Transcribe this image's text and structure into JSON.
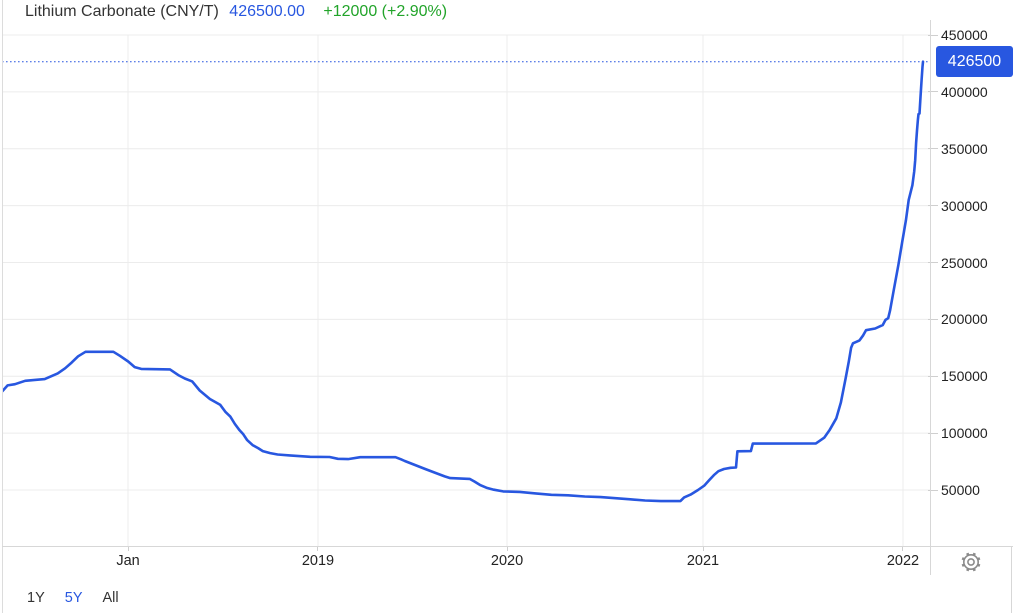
{
  "header": {
    "instrument": "Lithium Carbonate (CNY/T)",
    "price": "426500.00",
    "change": "+12000 (+2.90%)"
  },
  "marker": {
    "label": "426500",
    "value": 426500
  },
  "toolbar": {
    "ranges": [
      {
        "label": "1Y",
        "active": false
      },
      {
        "label": "5Y",
        "active": true
      },
      {
        "label": "All",
        "active": false
      }
    ]
  },
  "icons": {
    "settings": "gear-icon"
  },
  "colors": {
    "accent": "#2857e0",
    "green": "#22a42a",
    "title_text": "#333333",
    "text": "#222222",
    "grid": "#ececec",
    "axis_border": "#d7d7d7",
    "tick": "#cfcfcf",
    "gear": "#8b8b8b",
    "marker_text": "#ffffff"
  },
  "chart_data": {
    "type": "line",
    "title": "Lithium Carbonate (CNY/T)",
    "unit": "CNY/T",
    "current_value": 426500,
    "change_abs": 12000,
    "change_pct": 2.9,
    "ylim": [
      0,
      460000
    ],
    "grid": true,
    "y_ticks": [
      450000,
      400000,
      350000,
      300000,
      250000,
      200000,
      150000,
      100000,
      50000
    ],
    "x_ticks": [
      {
        "label": "Jan",
        "f": 0.1358
      },
      {
        "label": "2019",
        "f": 0.3405
      },
      {
        "label": "2020",
        "f": 0.5442
      },
      {
        "label": "2021",
        "f": 0.7554
      },
      {
        "label": "2022",
        "f": 0.9709
      }
    ],
    "x_note": "f = fraction across plot; ticks mark Jan 2018 through Jan 2022; series spans mid-2017 to Feb 2022",
    "points": [
      [
        0.0,
        136500
      ],
      [
        0.006,
        142000
      ],
      [
        0.014,
        143000
      ],
      [
        0.025,
        146000
      ],
      [
        0.046,
        147500
      ],
      [
        0.06,
        152500
      ],
      [
        0.068,
        157000
      ],
      [
        0.075,
        162000
      ],
      [
        0.082,
        167500
      ],
      [
        0.09,
        171500
      ],
      [
        0.12,
        171500
      ],
      [
        0.127,
        168000
      ],
      [
        0.136,
        163000
      ],
      [
        0.143,
        158000
      ],
      [
        0.15,
        156500
      ],
      [
        0.181,
        156000
      ],
      [
        0.19,
        151000
      ],
      [
        0.197,
        148000
      ],
      [
        0.205,
        145500
      ],
      [
        0.213,
        137500
      ],
      [
        0.224,
        130000
      ],
      [
        0.235,
        125000
      ],
      [
        0.241,
        118500
      ],
      [
        0.246,
        114500
      ],
      [
        0.251,
        108000
      ],
      [
        0.256,
        102500
      ],
      [
        0.26,
        99000
      ],
      [
        0.264,
        94000
      ],
      [
        0.27,
        89500
      ],
      [
        0.276,
        86800
      ],
      [
        0.281,
        84200
      ],
      [
        0.289,
        82400
      ],
      [
        0.297,
        81200
      ],
      [
        0.31,
        80400
      ],
      [
        0.332,
        79200
      ],
      [
        0.353,
        79000
      ],
      [
        0.362,
        77400
      ],
      [
        0.373,
        77200
      ],
      [
        0.386,
        78800
      ],
      [
        0.424,
        78800
      ],
      [
        0.43,
        77000
      ],
      [
        0.434,
        75500
      ],
      [
        0.445,
        72000
      ],
      [
        0.456,
        68500
      ],
      [
        0.467,
        65000
      ],
      [
        0.477,
        62000
      ],
      [
        0.483,
        60500
      ],
      [
        0.504,
        59800
      ],
      [
        0.509,
        57500
      ],
      [
        0.515,
        54500
      ],
      [
        0.522,
        52000
      ],
      [
        0.53,
        50300
      ],
      [
        0.54,
        48800
      ],
      [
        0.558,
        48300
      ],
      [
        0.575,
        47000
      ],
      [
        0.592,
        45800
      ],
      [
        0.61,
        45300
      ],
      [
        0.628,
        44300
      ],
      [
        0.645,
        43800
      ],
      [
        0.661,
        42800
      ],
      [
        0.677,
        41800
      ],
      [
        0.693,
        40800
      ],
      [
        0.71,
        40200
      ],
      [
        0.731,
        40200
      ],
      [
        0.735,
        43500
      ],
      [
        0.742,
        46000
      ],
      [
        0.75,
        50000
      ],
      [
        0.757,
        54000
      ],
      [
        0.762,
        58500
      ],
      [
        0.767,
        63000
      ],
      [
        0.772,
        66500
      ],
      [
        0.778,
        68500
      ],
      [
        0.785,
        69500
      ],
      [
        0.791,
        69800
      ],
      [
        0.7925,
        84000
      ],
      [
        0.807,
        84200
      ],
      [
        0.809,
        90800
      ],
      [
        0.877,
        91000
      ],
      [
        0.886,
        96000
      ],
      [
        0.892,
        103000
      ],
      [
        0.899,
        113000
      ],
      [
        0.904,
        127000
      ],
      [
        0.909,
        148000
      ],
      [
        0.9125,
        163000
      ],
      [
        0.915,
        175000
      ],
      [
        0.917,
        179000
      ],
      [
        0.924,
        181500
      ],
      [
        0.928,
        186000
      ],
      [
        0.931,
        190500
      ],
      [
        0.941,
        192000
      ],
      [
        0.949,
        195000
      ],
      [
        0.952,
        199500
      ],
      [
        0.955,
        201000
      ],
      [
        0.957,
        208000
      ],
      [
        0.961,
        226000
      ],
      [
        0.966,
        248000
      ],
      [
        0.97,
        268000
      ],
      [
        0.974,
        287000
      ],
      [
        0.977,
        305000
      ],
      [
        0.981,
        318000
      ],
      [
        0.983,
        330000
      ],
      [
        0.984,
        340000
      ],
      [
        0.985,
        355000
      ],
      [
        0.986,
        366000
      ],
      [
        0.987,
        375500
      ],
      [
        0.9876,
        380500
      ],
      [
        0.9887,
        381000
      ],
      [
        0.9898,
        395500
      ],
      [
        0.9909,
        410500
      ],
      [
        0.9919,
        422000
      ],
      [
        0.9925,
        426500
      ]
    ]
  }
}
